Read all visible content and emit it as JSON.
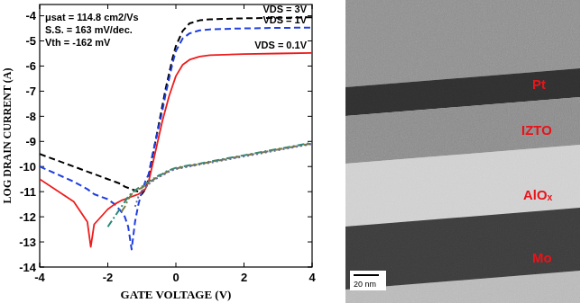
{
  "chart_data": {
    "type": "line",
    "xlabel": "GATE VOLTAGE (V)",
    "ylabel": "LOG DRAIN CURRENT (A)",
    "annotations": [
      "μsat = 114.8 cm2/Vs",
      "S.S. = 163 mV/dec.",
      "Vth = -162 mV"
    ],
    "x": [
      -4,
      -3,
      -2.6,
      -2.5,
      -2.4,
      -2,
      -1.8,
      -1.6,
      -1.5,
      -1.4,
      -1.3,
      -1.2,
      -1.1,
      -1,
      -0.9,
      -0.8,
      -0.7,
      -0.6,
      -0.5,
      -0.4,
      -0.3,
      -0.2,
      -0.1,
      0,
      0.2,
      0.4,
      0.7,
      1,
      2,
      3,
      4
    ],
    "series": [
      {
        "name": "VDS = 3V",
        "color": "#000000",
        "line_style": "dashed",
        "values": [
          -9.5,
          -10.0,
          -10.2,
          -10.25,
          -10.3,
          -10.5,
          -10.6,
          -10.7,
          -10.8,
          -10.85,
          -10.9,
          -10.95,
          -11.0,
          -11.1,
          -10.9,
          -10.5,
          -9.7,
          -9.0,
          -8.3,
          -7.6,
          -6.9,
          -6.3,
          -5.7,
          -5.2,
          -4.6,
          -4.3,
          -4.18,
          -4.14,
          -4.1,
          -4.08,
          -4.06
        ]
      },
      {
        "name": "VDS = 1V",
        "color": "#1f3fe0",
        "line_style": "dashed",
        "values": [
          -10.0,
          -10.6,
          -10.9,
          -11.0,
          -11.1,
          -11.3,
          -11.5,
          -11.8,
          -12.0,
          -12.4,
          -13.3,
          -12.2,
          -11.5,
          -11.0,
          -10.6,
          -10.3,
          -9.6,
          -9.0,
          -8.4,
          -7.8,
          -7.1,
          -6.5,
          -5.9,
          -5.4,
          -4.9,
          -4.7,
          -4.58,
          -4.54,
          -4.5,
          -4.48,
          -4.47
        ]
      },
      {
        "name": "VDS = 0.1V",
        "color": "#ee1c1c",
        "line_style": "solid",
        "values": [
          -10.5,
          -11.4,
          -12.2,
          -13.2,
          -12.3,
          -11.7,
          -11.5,
          -11.35,
          -11.3,
          -11.25,
          -11.2,
          -11.15,
          -11.1,
          -11.0,
          -10.9,
          -10.6,
          -10.0,
          -9.4,
          -8.8,
          -8.2,
          -7.7,
          -7.2,
          -6.8,
          -6.4,
          -5.95,
          -5.75,
          -5.62,
          -5.57,
          -5.52,
          -5.5,
          -5.48
        ]
      },
      {
        "color": "#2a8a7a",
        "line_style": "dashdot",
        "values": [
          null,
          null,
          null,
          null,
          null,
          -12.4,
          -12.0,
          -11.6,
          -11.4,
          -11.2,
          -11.05,
          -10.95,
          -10.85,
          -10.8,
          -10.7,
          -10.6,
          -10.5,
          -10.45,
          -10.35,
          -10.3,
          -10.2,
          -10.15,
          -10.1,
          -10.05,
          -10.0,
          -9.95,
          -9.88,
          -9.8,
          -9.55,
          -9.3,
          -9.05
        ]
      },
      {
        "color": "#7a7a40",
        "line_style": "dashdot",
        "values": [
          null,
          null,
          null,
          null,
          null,
          null,
          null,
          -11.8,
          -11.6,
          -11.3,
          -11.1,
          -11.0,
          -10.9,
          -10.85,
          -10.75,
          -10.65,
          -10.55,
          -10.47,
          -10.4,
          -10.32,
          -10.25,
          -10.18,
          -10.12,
          -10.08,
          -10.02,
          -9.97,
          -9.9,
          -9.82,
          -9.57,
          -9.32,
          -9.08
        ]
      },
      {
        "color": "#6a6a9a",
        "line_style": "dotted",
        "values": [
          null,
          null,
          null,
          null,
          null,
          null,
          null,
          null,
          null,
          null,
          null,
          -11.6,
          -11.2,
          -11.0,
          -10.85,
          -10.7,
          -10.6,
          -10.5,
          -10.42,
          -10.35,
          -10.28,
          -10.2,
          -10.15,
          -10.1,
          -10.05,
          -10.0,
          -9.92,
          -9.85,
          -9.6,
          -9.35,
          -9.1
        ]
      }
    ],
    "xlim": [
      -4,
      4
    ],
    "ylim": [
      -14,
      -3.55
    ],
    "xticks": [
      -4,
      -2,
      0,
      2,
      4
    ],
    "yticks": [
      -14,
      -13,
      -12,
      -11,
      -10,
      -9,
      -8,
      -7,
      -6,
      -5,
      -4
    ],
    "grid": false
  },
  "tem_image": {
    "labels": [
      "Pt",
      "IZTO",
      "AlOₓ",
      "Mo"
    ],
    "scale_bar": "20 nm"
  }
}
